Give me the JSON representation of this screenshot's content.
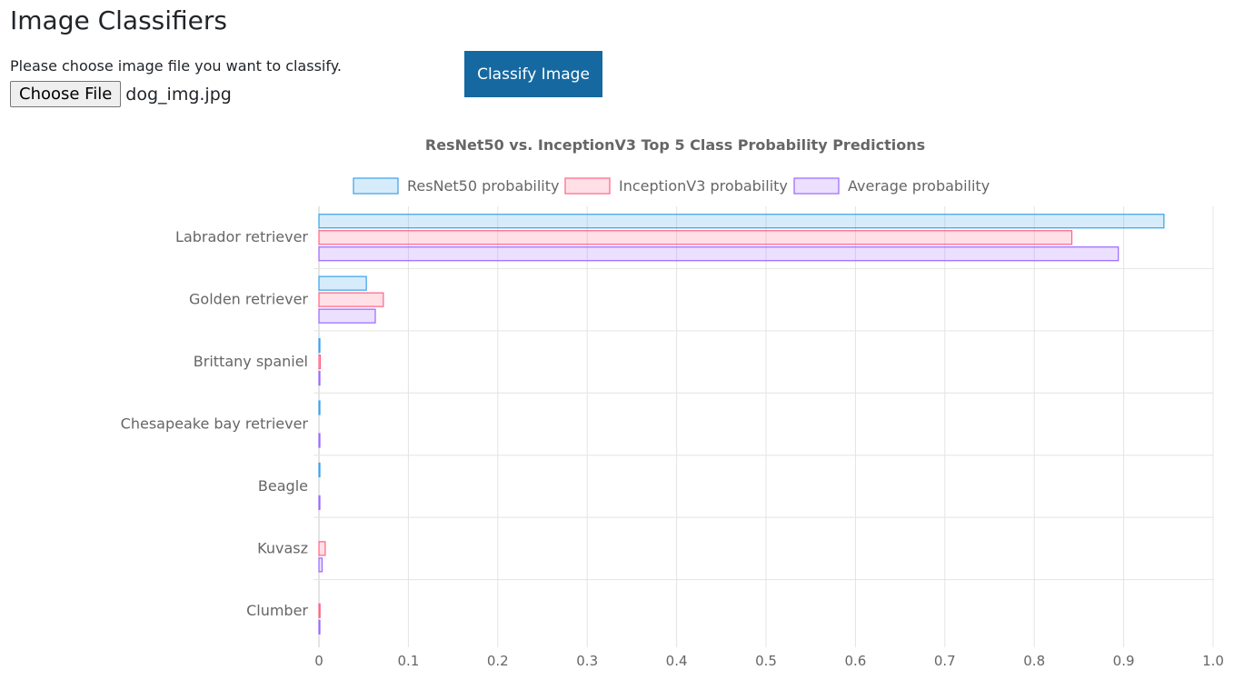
{
  "page": {
    "title": "Image Classifiers",
    "instructions": "Please choose image file you want to classify.",
    "file_button_label": "Choose File",
    "file_name": "dog_img.jpg",
    "classify_button_label": "Classify Image"
  },
  "chart_data": {
    "type": "bar",
    "orientation": "horizontal",
    "title": "ResNet50 vs. InceptionV3 Top 5 Class Probability Predictions",
    "categories": [
      "Labrador retriever",
      "Golden retriever",
      "Brittany spaniel",
      "Chesapeake bay retriever",
      "Beagle",
      "Kuvasz",
      "Clumber"
    ],
    "series": [
      {
        "name": "ResNet50 probability",
        "values": [
          0.945,
          0.053,
          0.0005,
          0.0003,
          0.0002,
          0,
          0
        ],
        "color": "#36a2eb"
      },
      {
        "name": "InceptionV3 probability",
        "values": [
          0.842,
          0.072,
          0.0015,
          0,
          0,
          0.007,
          0.0012
        ],
        "color": "#ff6384"
      },
      {
        "name": "Average probability",
        "values": [
          0.894,
          0.063,
          0.001,
          0.0002,
          0.0001,
          0.0035,
          0.0006
        ],
        "color": "#9966ff"
      }
    ],
    "xlim": [
      0,
      1.0
    ],
    "x_ticks": [
      "0",
      "0.1",
      "0.2",
      "0.3",
      "0.4",
      "0.5",
      "0.6",
      "0.7",
      "0.8",
      "0.9",
      "1.0"
    ],
    "grid": true,
    "legend_position": "top"
  }
}
